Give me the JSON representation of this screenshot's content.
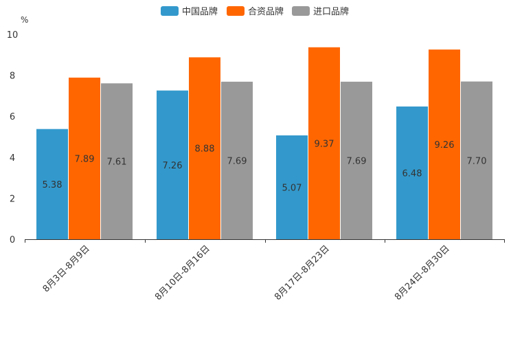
{
  "chart_data": {
    "type": "bar",
    "ylabel": "%",
    "ylim": [
      0,
      10
    ],
    "yticks": [
      0,
      2,
      4,
      6,
      8,
      10
    ],
    "categories": [
      "8月3日-8月9日",
      "8月10日-8月16日",
      "8月17日-8月23日",
      "8月24日-8月30日"
    ],
    "series": [
      {
        "name": "中国品牌",
        "color": "#3399cc",
        "values": [
          5.38,
          7.26,
          5.07,
          6.48
        ],
        "labels": [
          "5.38",
          "7.26",
          "5.07",
          "6.48"
        ]
      },
      {
        "name": "合资品牌",
        "color": "#ff6600",
        "values": [
          7.89,
          8.88,
          9.37,
          9.26
        ],
        "labels": [
          "7.89",
          "8.88",
          "9.37",
          "9.26"
        ]
      },
      {
        "name": "进口品牌",
        "color": "#999999",
        "values": [
          7.61,
          7.69,
          7.69,
          7.7
        ],
        "labels": [
          "7.61",
          "7.69",
          "7.69",
          "7.70"
        ]
      }
    ],
    "legend_position": "top-center",
    "grid": false
  }
}
